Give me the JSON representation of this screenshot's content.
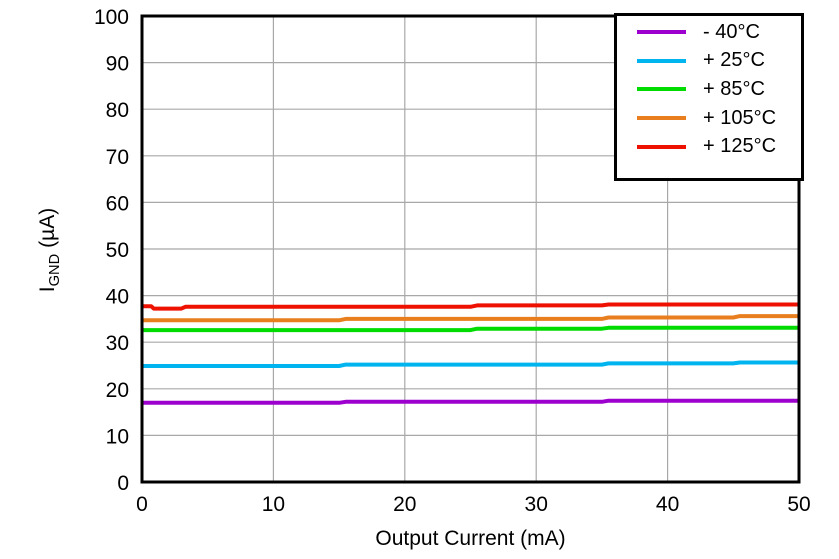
{
  "chart_data": {
    "type": "line",
    "title": "",
    "xlabel": "Output Current (mA)",
    "ylabel_main": "I",
    "ylabel_sub": "GND",
    "ylabel_unit": " (µA)",
    "xlim": [
      0,
      50
    ],
    "ylim": [
      0,
      100
    ],
    "xticks": [
      0,
      10,
      20,
      30,
      40,
      50
    ],
    "yticks": [
      0,
      10,
      20,
      30,
      40,
      50,
      60,
      70,
      80,
      90,
      100
    ],
    "grid": true,
    "legend_position": "top-right",
    "series": [
      {
        "name": "- 40°C",
        "color": "#9D00CE",
        "points": [
          [
            0,
            17.0
          ],
          [
            15,
            17.0
          ],
          [
            15.5,
            17.2
          ],
          [
            35,
            17.2
          ],
          [
            35.5,
            17.45
          ],
          [
            50,
            17.45
          ]
        ]
      },
      {
        "name": "+ 25°C",
        "color": "#00B4F0",
        "points": [
          [
            0,
            24.9
          ],
          [
            15,
            24.9
          ],
          [
            15.5,
            25.2
          ],
          [
            35,
            25.2
          ],
          [
            35.5,
            25.45
          ],
          [
            45,
            25.45
          ],
          [
            45.5,
            25.65
          ],
          [
            50,
            25.65
          ]
        ]
      },
      {
        "name": "+ 85°C",
        "color": "#00DC00",
        "points": [
          [
            0,
            32.6
          ],
          [
            25,
            32.6
          ],
          [
            25.5,
            32.9
          ],
          [
            35,
            32.9
          ],
          [
            35.5,
            33.1
          ],
          [
            50,
            33.1
          ]
        ]
      },
      {
        "name": "+ 105°C",
        "color": "#E87E1E",
        "points": [
          [
            0,
            34.7
          ],
          [
            15,
            34.7
          ],
          [
            15.5,
            35.0
          ],
          [
            35,
            35.0
          ],
          [
            35.5,
            35.3
          ],
          [
            45,
            35.3
          ],
          [
            45.5,
            35.6
          ],
          [
            50,
            35.6
          ]
        ]
      },
      {
        "name": "+ 125°C",
        "color": "#EE1100",
        "points": [
          [
            0,
            37.7
          ],
          [
            0.7,
            37.7
          ],
          [
            0.9,
            37.2
          ],
          [
            3,
            37.2
          ],
          [
            3.3,
            37.6
          ],
          [
            25,
            37.6
          ],
          [
            25.5,
            37.9
          ],
          [
            35,
            37.9
          ],
          [
            35.5,
            38.1
          ],
          [
            50,
            38.1
          ]
        ]
      }
    ]
  },
  "colors": {
    "background": "#FFFFFF",
    "axis": "#000000",
    "grid": "#A8A8A8",
    "text": "#000000"
  }
}
